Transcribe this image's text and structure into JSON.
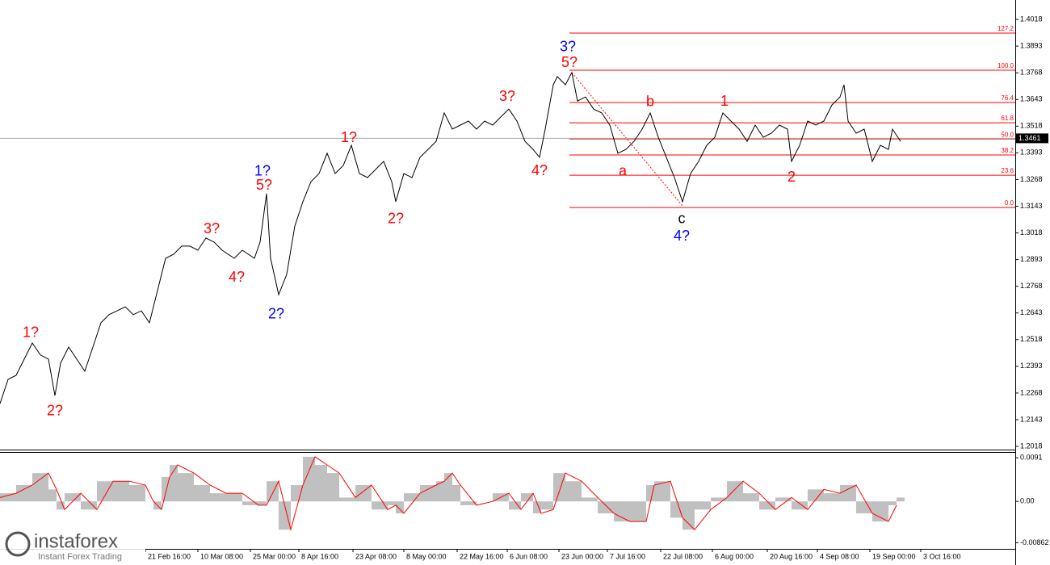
{
  "chart_data": [
    {
      "type": "line",
      "color": "#000000",
      "ylim": [
        1.2003,
        1.4109
      ],
      "xlim": [
        0,
        1257
      ],
      "yticks": [
        1.4018,
        1.3893,
        1.3768,
        1.3643,
        1.3518,
        1.3393,
        1.3268,
        1.3143,
        1.3018,
        1.2893,
        1.2768,
        1.2643,
        1.2518,
        1.2393,
        1.2268,
        1.2143,
        1.2018
      ],
      "x": [
        0,
        10,
        20,
        30,
        40,
        50,
        60,
        68,
        75,
        85,
        95,
        105,
        115,
        125,
        135,
        145,
        155,
        165,
        175,
        185,
        195,
        205,
        215,
        225,
        235,
        245,
        255,
        265,
        275,
        290,
        300,
        315,
        322,
        330,
        335,
        345,
        355,
        365,
        375,
        385,
        395,
        405,
        415,
        425,
        435,
        445,
        455,
        465,
        475,
        485,
        490,
        500,
        510,
        520,
        530,
        540,
        550,
        560,
        570,
        580,
        590,
        600,
        610,
        620,
        630,
        640,
        650,
        660,
        668,
        675,
        685,
        690,
        700,
        708,
        715,
        725,
        735,
        745,
        755,
        765,
        775,
        785,
        795,
        805,
        815,
        825,
        835,
        845,
        855,
        865,
        875,
        885,
        895,
        905,
        915,
        925,
        935,
        945,
        955,
        965,
        975,
        980,
        990,
        1000,
        1010,
        1020,
        1030,
        1040,
        1045,
        1050,
        1060,
        1070,
        1080,
        1090,
        1100,
        1105,
        1115
      ],
      "values": [
        1.2218,
        1.2332,
        1.2351,
        1.2427,
        1.2502,
        1.2446,
        1.2427,
        1.2256,
        1.2408,
        1.2483,
        1.2427,
        1.237,
        1.2483,
        1.2597,
        1.2635,
        1.2653,
        1.2672,
        1.2635,
        1.2653,
        1.2597,
        1.2748,
        1.2899,
        1.2918,
        1.2956,
        1.2956,
        1.2937,
        1.2994,
        1.2975,
        1.2937,
        1.2899,
        1.2937,
        1.2899,
        1.2975,
        1.3202,
        1.2899,
        1.2729,
        1.2824,
        1.305,
        1.3164,
        1.3258,
        1.3296,
        1.3391,
        1.3296,
        1.3334,
        1.3428,
        1.3296,
        1.3277,
        1.3315,
        1.3353,
        1.3258,
        1.3164,
        1.3296,
        1.3277,
        1.3372,
        1.3409,
        1.3447,
        1.358,
        1.3504,
        1.3523,
        1.3542,
        1.3504,
        1.3542,
        1.3523,
        1.3561,
        1.3598,
        1.3542,
        1.3447,
        1.3409,
        1.3372,
        1.3504,
        1.3712,
        1.375,
        1.3712,
        1.3769,
        1.3636,
        1.3655,
        1.3598,
        1.358,
        1.3523,
        1.3391,
        1.3409,
        1.3447,
        1.3504,
        1.358,
        1.3466,
        1.3372,
        1.3277,
        1.3164,
        1.3296,
        1.3353,
        1.3428,
        1.3466,
        1.358,
        1.3542,
        1.3504,
        1.3447,
        1.3523,
        1.3466,
        1.3485,
        1.3523,
        1.3504,
        1.3353,
        1.3428,
        1.3542,
        1.3523,
        1.3542,
        1.3617,
        1.3655,
        1.3712,
        1.3542,
        1.3485,
        1.3504,
        1.3353,
        1.3428,
        1.3409,
        1.3504,
        1.3447
      ],
      "last_price": 1.3461,
      "fib_levels": [
        {
          "label": "127.2",
          "value": 1.3954
        },
        {
          "label": "100.0",
          "value": 1.378
        },
        {
          "label": "76.4",
          "value": 1.3629
        },
        {
          "label": "61.8",
          "value": 1.3534
        },
        {
          "label": "50.0",
          "value": 1.3458
        },
        {
          "label": "38.2",
          "value": 1.3383
        },
        {
          "label": "23.6",
          "value": 1.3288
        },
        {
          "label": "0.0",
          "value": 1.3137
        }
      ],
      "fib_start": 705,
      "annotations": [
        {
          "text": "1?",
          "x": 38,
          "y": 1.2548,
          "color": "#ff0000"
        },
        {
          "text": "2?",
          "x": 68,
          "y": 1.2181,
          "color": "#ff0000"
        },
        {
          "text": "3?",
          "x": 262,
          "y": 1.3035,
          "color": "#ff0000"
        },
        {
          "text": "4?",
          "x": 293,
          "y": 1.2808,
          "color": "#ff0000"
        },
        {
          "text": "1?",
          "x": 325,
          "y": 1.3304,
          "color": "#0000ff"
        },
        {
          "text": "5?",
          "x": 327,
          "y": 1.3239,
          "color": "#ff0000"
        },
        {
          "text": "2?",
          "x": 342,
          "y": 1.2635,
          "color": "#0000ff"
        },
        {
          "text": "1?",
          "x": 432,
          "y": 1.3462,
          "color": "#ff0000"
        },
        {
          "text": "2?",
          "x": 490,
          "y": 1.3081,
          "color": "#ff0000"
        },
        {
          "text": "3?",
          "x": 628,
          "y": 1.3655,
          "color": "#ff0000"
        },
        {
          "text": "4?",
          "x": 668,
          "y": 1.3307,
          "color": "#ff0000"
        },
        {
          "text": "3?",
          "x": 703,
          "y": 1.3886,
          "color": "#0000ff"
        },
        {
          "text": "5?",
          "x": 705,
          "y": 1.3814,
          "color": "#ff0000"
        },
        {
          "text": "a",
          "x": 771,
          "y": 1.3304,
          "color": "#ff0000"
        },
        {
          "text": "b",
          "x": 805,
          "y": 1.3629,
          "color": "#ff0000"
        },
        {
          "text": "c",
          "x": 844,
          "y": 1.3081,
          "color": "#000000"
        },
        {
          "text": "4?",
          "x": 844,
          "y": 1.3001,
          "color": "#0000ff"
        },
        {
          "text": "1",
          "x": 897,
          "y": 1.3632,
          "color": "#ff0000"
        },
        {
          "text": "2",
          "x": 980,
          "y": 1.3277,
          "color": "#ff0000"
        }
      ]
    },
    {
      "type": "bar",
      "ylim": [
        -0.0099,
        0.0103
      ],
      "xlim": [
        0,
        1257
      ],
      "yticks": [
        0.0091,
        {
          "value": 0,
          "label": "0.00"
        },
        -0.00862
      ],
      "xticks": [
        {
          "value": 180,
          "label": "21 Feb 16:00"
        },
        {
          "value": 245,
          "label": "10 Mar 08:00"
        },
        {
          "value": 310,
          "label": "25 Mar 00:00"
        },
        {
          "value": 370,
          "label": "8 Apr 16:00"
        },
        {
          "value": 437,
          "label": "23 Apr 08:00"
        },
        {
          "value": 500,
          "label": "8 May 00:00"
        },
        {
          "value": 566,
          "label": "22 May 16:00"
        },
        {
          "value": 628,
          "label": "6 Jun 08:00"
        },
        {
          "value": 692,
          "label": "23 Jun 00:00"
        },
        {
          "value": 752,
          "label": "7 Jul 16:00"
        },
        {
          "value": 818,
          "label": "22 Jul 08:00"
        },
        {
          "value": 882,
          "label": "6 Aug 00:00"
        },
        {
          "value": 950,
          "label": "20 Aug 16:00"
        },
        {
          "value": 1012,
          "label": "4 Sep 08:00"
        },
        {
          "value": 1077,
          "label": "19 Sep 00:00"
        },
        {
          "value": 1140,
          "label": "3 Oct 16:00"
        }
      ],
      "x": [
        0,
        20,
        40,
        60,
        70,
        80,
        100,
        120,
        140,
        160,
        180,
        190,
        200,
        210,
        220,
        240,
        260,
        280,
        300,
        320,
        330,
        345,
        360,
        375,
        390,
        405,
        420,
        440,
        460,
        480,
        490,
        500,
        520,
        540,
        550,
        560,
        570,
        590,
        610,
        630,
        645,
        660,
        670,
        685,
        700,
        720,
        740,
        760,
        780,
        800,
        810,
        830,
        845,
        860,
        880,
        900,
        920,
        940,
        960,
        980,
        1000,
        1020,
        1040,
        1060,
        1080,
        1100,
        1110
      ],
      "series": [
        {
          "color": "#c0c0c0",
          "values": [
            0.0017,
            0.0034,
            0.0059,
            0.0025,
            -0.0017,
            0.0017,
            -0.0017,
            0.0042,
            0.0042,
            0.0034,
            0,
            -0.0017,
            0.0051,
            0.0076,
            0.0059,
            0.0034,
            0.0017,
            0.0017,
            -0.0008,
            -0.0008,
            0.0042,
            -0.0059,
            0.0034,
            0.0093,
            0.0076,
            0.0059,
            0.0008,
            0.0034,
            -0.0017,
            -0.0008,
            -0.0025,
            0.0017,
            0.0034,
            0.0042,
            0.0059,
            0.0034,
            -0.0008,
            0,
            0.0017,
            -0.0017,
            0.0017,
            -0.0025,
            -0.0017,
            0.0059,
            0.0042,
            0.0008,
            -0.0025,
            -0.0042,
            -0.0042,
            0.0034,
            0.0042,
            -0.0034,
            -0.0059,
            -0.0017,
            0.0008,
            0.0042,
            0.0017,
            -0.0017,
            0.0008,
            -0.0017,
            0.0025,
            0.0017,
            0.0034,
            -0.0025,
            -0.0042,
            -0.0008,
            0.0008
          ]
        },
        {
          "color": "#ff0000",
          "type": "line",
          "values": [
            0.0008,
            0.0017,
            0.0034,
            0.0059,
            0.0025,
            -0.0017,
            0.0017,
            -0.0017,
            0.0042,
            0.0042,
            0.0034,
            0,
            -0.0017,
            0.0051,
            0.0076,
            0.0059,
            0.0034,
            0.0017,
            0.0017,
            -0.0008,
            -0.0008,
            0.0042,
            -0.0059,
            0.0034,
            0.0093,
            0.0076,
            0.0059,
            0.0008,
            0.0034,
            -0.0017,
            -0.0008,
            -0.0025,
            0.0017,
            0.0034,
            0.0042,
            0.0059,
            0.0034,
            -0.0008,
            0,
            0.0017,
            -0.0017,
            0.0017,
            -0.0025,
            -0.0017,
            0.0059,
            0.0042,
            0.0008,
            -0.0025,
            -0.0042,
            -0.0042,
            0.0034,
            0.0042,
            -0.0034,
            -0.0059,
            -0.0017,
            0.0008,
            0.0042,
            0.0017,
            -0.0017,
            0.0008,
            -0.0017,
            0.0025,
            0.0017,
            0.0034,
            -0.0025,
            -0.0042,
            -0.0008
          ]
        }
      ]
    }
  ],
  "logo": {
    "name": "instaforex",
    "tagline": "Instant Forex Trading"
  }
}
